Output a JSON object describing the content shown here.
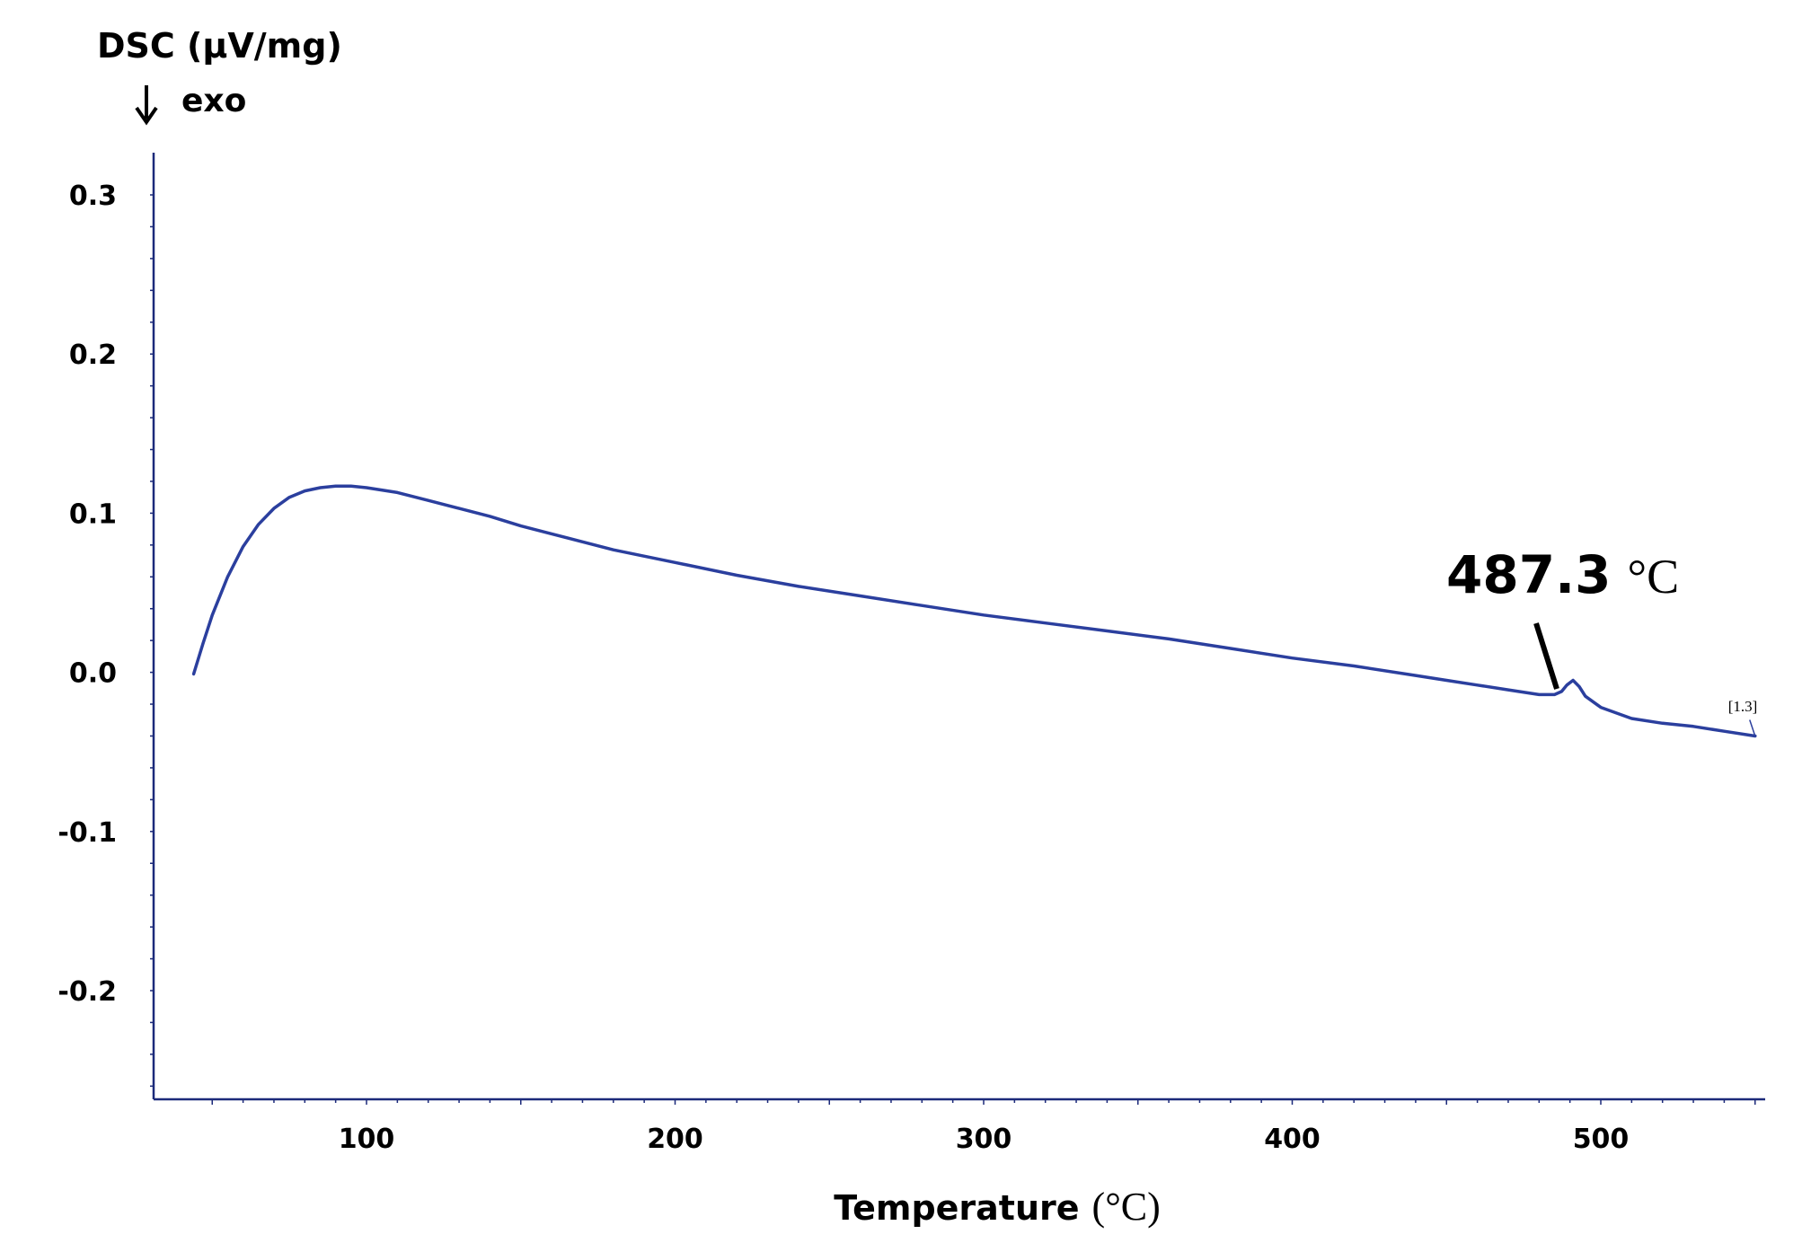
{
  "chart_data": {
    "type": "line",
    "title": "",
    "ylabel": "DSC (µV/mg)",
    "ylabel_direction": "exo",
    "xlabel_text": "Temperature",
    "xlabel_unit": "(°C)",
    "xlim": [
      40,
      550
    ],
    "ylim": [
      -0.27,
      0.32
    ],
    "x_ticks": [
      100,
      200,
      300,
      400,
      500
    ],
    "x_tick_labels": [
      "100",
      "200",
      "300",
      "400",
      "500"
    ],
    "y_ticks": [
      0.3,
      0.2,
      0.1,
      0.0,
      -0.1,
      -0.2
    ],
    "y_tick_labels": [
      "0.3",
      "0.2",
      "0.1",
      "0.0",
      "-0.1",
      "-0.2"
    ],
    "series": [
      {
        "name": "DSC",
        "color": "#2b3f9e",
        "x": [
          44,
          47,
          50,
          55,
          60,
          65,
          70,
          75,
          80,
          85,
          90,
          95,
          100,
          110,
          120,
          130,
          140,
          150,
          160,
          170,
          180,
          200,
          220,
          240,
          260,
          280,
          300,
          320,
          340,
          360,
          380,
          400,
          420,
          440,
          450,
          460,
          470,
          480,
          485,
          487.3,
          489,
          491,
          493,
          495,
          500,
          510,
          520,
          530,
          540,
          550
        ],
        "y": [
          -0.001,
          0.018,
          0.036,
          0.06,
          0.079,
          0.093,
          0.103,
          0.11,
          0.114,
          0.116,
          0.117,
          0.117,
          0.116,
          0.113,
          0.108,
          0.103,
          0.098,
          0.092,
          0.087,
          0.082,
          0.077,
          0.069,
          0.061,
          0.054,
          0.048,
          0.042,
          0.036,
          0.031,
          0.026,
          0.021,
          0.015,
          0.009,
          0.004,
          -0.002,
          -0.005,
          -0.008,
          -0.011,
          -0.014,
          -0.014,
          -0.012,
          -0.008,
          -0.005,
          -0.009,
          -0.015,
          -0.022,
          -0.029,
          -0.032,
          -0.034,
          -0.037,
          -0.04
        ]
      }
    ],
    "annotations": [
      {
        "text": "487.3",
        "unit": "°C",
        "x": 487.3,
        "y": -0.012
      },
      {
        "text": "[1.3]",
        "x": 550,
        "y": -0.04
      }
    ]
  }
}
